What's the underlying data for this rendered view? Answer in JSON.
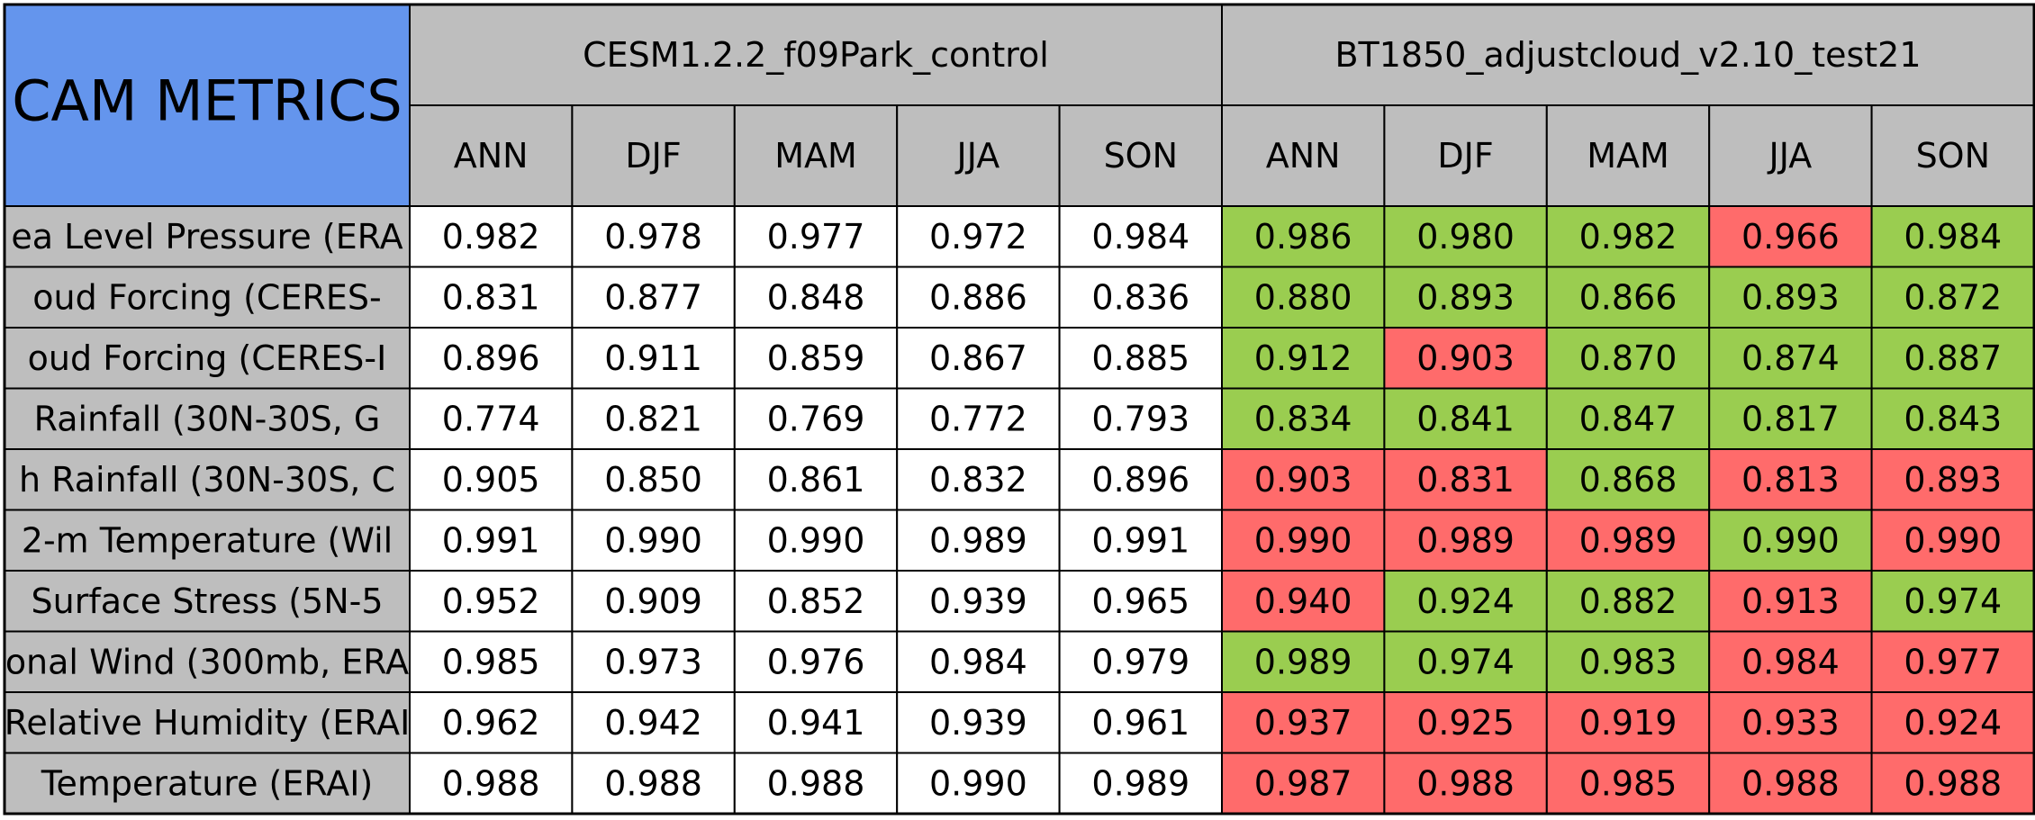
{
  "chart_data": {
    "type": "table",
    "title": "CAM METRICS",
    "groups": [
      {
        "name": "CESM1.2.2_f09Park_control",
        "columns": [
          "ANN",
          "DJF",
          "MAM",
          "JJA",
          "SON"
        ]
      },
      {
        "name": "BT1850_adjustcloud_v2.10_test21",
        "columns": [
          "ANN",
          "DJF",
          "MAM",
          "JJA",
          "SON"
        ]
      }
    ],
    "row_labels": [
      "ea Level Pressure (ERA",
      "oud Forcing (CERES-",
      "oud Forcing (CERES-I",
      " Rainfall (30N-30S, G",
      "h Rainfall (30N-30S, C",
      "2-m Temperature (Wil",
      " Surface Stress (5N-5",
      "onal Wind (300mb, ERA",
      "Relative Humidity (ERAI",
      " Temperature (ERAI)"
    ],
    "values": [
      [
        "0.982",
        "0.978",
        "0.977",
        "0.972",
        "0.984",
        "0.986",
        "0.980",
        "0.982",
        "0.966",
        "0.984"
      ],
      [
        "0.831",
        "0.877",
        "0.848",
        "0.886",
        "0.836",
        "0.880",
        "0.893",
        "0.866",
        "0.893",
        "0.872"
      ],
      [
        "0.896",
        "0.911",
        "0.859",
        "0.867",
        "0.885",
        "0.912",
        "0.903",
        "0.870",
        "0.874",
        "0.887"
      ],
      [
        "0.774",
        "0.821",
        "0.769",
        "0.772",
        "0.793",
        "0.834",
        "0.841",
        "0.847",
        "0.817",
        "0.843"
      ],
      [
        "0.905",
        "0.850",
        "0.861",
        "0.832",
        "0.896",
        "0.903",
        "0.831",
        "0.868",
        "0.813",
        "0.893"
      ],
      [
        "0.991",
        "0.990",
        "0.990",
        "0.989",
        "0.991",
        "0.990",
        "0.989",
        "0.989",
        "0.990",
        "0.990"
      ],
      [
        "0.952",
        "0.909",
        "0.852",
        "0.939",
        "0.965",
        "0.940",
        "0.924",
        "0.882",
        "0.913",
        "0.974"
      ],
      [
        "0.985",
        "0.973",
        "0.976",
        "0.984",
        "0.979",
        "0.989",
        "0.974",
        "0.983",
        "0.984",
        "0.977"
      ],
      [
        "0.962",
        "0.942",
        "0.941",
        "0.939",
        "0.961",
        "0.937",
        "0.925",
        "0.919",
        "0.933",
        "0.924"
      ],
      [
        "0.988",
        "0.988",
        "0.988",
        "0.990",
        "0.989",
        "0.987",
        "0.988",
        "0.985",
        "0.988",
        "0.988"
      ]
    ],
    "test_status": [
      [
        "better",
        "better",
        "better",
        "worse",
        "better"
      ],
      [
        "better",
        "better",
        "better",
        "better",
        "better"
      ],
      [
        "better",
        "worse",
        "better",
        "better",
        "better"
      ],
      [
        "better",
        "better",
        "better",
        "better",
        "better"
      ],
      [
        "worse",
        "worse",
        "better",
        "worse",
        "worse"
      ],
      [
        "worse",
        "worse",
        "worse",
        "better",
        "worse"
      ],
      [
        "worse",
        "better",
        "better",
        "worse",
        "better"
      ],
      [
        "better",
        "better",
        "better",
        "worse",
        "worse"
      ],
      [
        "worse",
        "worse",
        "worse",
        "worse",
        "worse"
      ],
      [
        "worse",
        "worse",
        "worse",
        "worse",
        "worse"
      ]
    ],
    "colors": {
      "title_bg": "#6495ed",
      "header_bg": "#bebebe",
      "label_bg": "#bebebe",
      "control_bg": "#ffffff",
      "better": "#9acd50",
      "worse": "#ff6b6b",
      "grid": "#000000"
    }
  }
}
